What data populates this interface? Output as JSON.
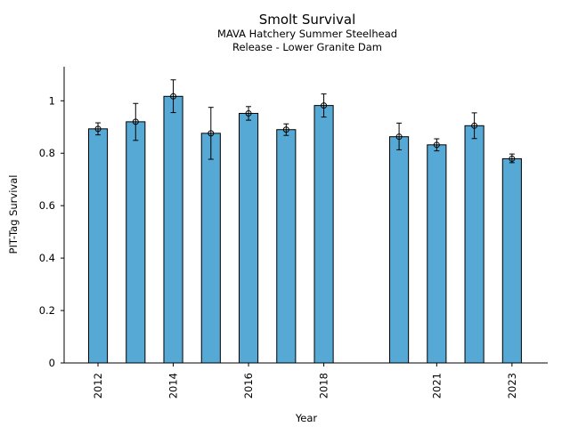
{
  "chart_data": {
    "type": "bar",
    "title": "Smolt Survival",
    "subtitle": [
      "MAVA Hatchery Summer Steelhead",
      "Release - Lower Granite Dam"
    ],
    "xlabel": "Year",
    "ylabel": "PIT-Tag Survival",
    "ylim": [
      0,
      1.13
    ],
    "yticks": [
      0,
      0.2,
      0.4,
      0.6,
      0.8,
      1
    ],
    "xlim": [
      2011.1,
      2023.95
    ],
    "xtick_labels": [
      "2012",
      "2014",
      "2016",
      "2018",
      "2021",
      "2023"
    ],
    "bar_color": "#55a9d4",
    "categories": [
      2012,
      2013,
      2014,
      2015,
      2016,
      2017,
      2018,
      2020,
      2021,
      2022,
      2023
    ],
    "values": [
      0.893,
      0.92,
      1.017,
      0.876,
      0.952,
      0.89,
      0.982,
      0.863,
      0.832,
      0.905,
      0.779
    ],
    "error_low": [
      0.87,
      0.849,
      0.955,
      0.777,
      0.926,
      0.868,
      0.938,
      0.813,
      0.809,
      0.856,
      0.764
    ],
    "error_high": [
      0.916,
      0.99,
      1.08,
      0.975,
      0.978,
      0.912,
      1.026,
      0.915,
      0.855,
      0.954,
      0.797
    ]
  }
}
